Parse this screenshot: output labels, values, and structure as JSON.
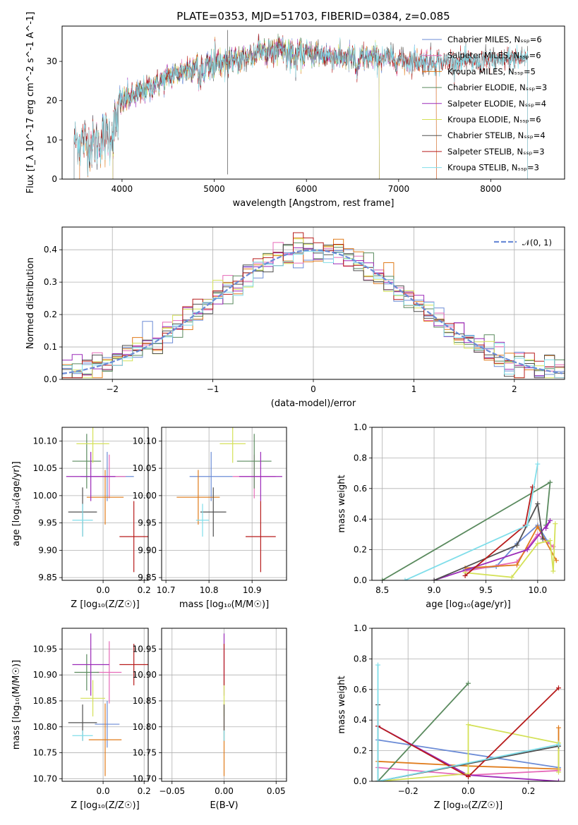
{
  "chart_data": [
    {
      "type": "line",
      "title": "PLATE=0353, MJD=51703, FIBERID=0384, z=0.085",
      "xlabel": "wavelength [Angstrom, rest frame]",
      "ylabel": "Flux [f_λ 10^-17 erg cm^-2 s^-1 A^-1]",
      "xlim": [
        3350,
        8800
      ],
      "ylim": [
        0,
        39
      ],
      "xticks": [
        "4000",
        "5000",
        "6000",
        "7000",
        "8000"
      ],
      "yticks": [
        "0",
        "10",
        "20",
        "30"
      ],
      "grid": false,
      "legend_position": "top-right",
      "series": [
        {
          "name": "Chabrier MILES, N_SSP=6",
          "color": "#6b8bd6",
          "x_range": [
            3540,
            7410
          ]
        },
        {
          "name": "Salpeter MILES, N_SSP=6",
          "color": "#e66ab8",
          "x_range": [
            3540,
            7410
          ]
        },
        {
          "name": "Kroupa MILES, N_SSP=5",
          "color": "#e07b1a",
          "x_range": [
            3540,
            7410
          ]
        },
        {
          "name": "Chabrier ELODIE, N_SSP=3",
          "color": "#5a8a5e",
          "x_range": [
            3900,
            6790
          ]
        },
        {
          "name": "Salpeter ELODIE, N_SSP=4",
          "color": "#9b2ab8",
          "x_range": [
            3900,
            6790
          ]
        },
        {
          "name": "Kroupa ELODIE, N_SSP=6",
          "color": "#d4e157",
          "x_range": [
            3900,
            6790
          ]
        },
        {
          "name": "Chabrier STELIB, N_SSP=4",
          "color": "#505050",
          "x_range": [
            3480,
            8400
          ]
        },
        {
          "name": "Salpeter STELIB, N_SSP=3",
          "color": "#b71c1c",
          "x_range": [
            3480,
            8400
          ]
        },
        {
          "name": "Kroupa STELIB, N_SSP=3",
          "color": "#80deea",
          "x_range": [
            3480,
            8400
          ]
        }
      ],
      "continuum": {
        "x": [
          3500,
          3700,
          3900,
          4000,
          4200,
          4500,
          4800,
          5200,
          5600,
          6000,
          6400,
          6800,
          7200,
          7600,
          8000,
          8400
        ],
        "y": [
          10,
          9,
          12,
          20,
          22,
          26,
          29,
          30,
          33,
          32,
          31,
          31,
          30,
          30,
          30,
          31
        ]
      }
    },
    {
      "type": "line",
      "xlabel": "(data-model)/error",
      "ylabel": "Normed distribution",
      "xlim": [
        -2.5,
        2.5
      ],
      "ylim": [
        0,
        0.47
      ],
      "xticks": [
        "−2",
        "−1",
        "0",
        "1",
        "2"
      ],
      "yticks": [
        "0.0",
        "0.1",
        "0.2",
        "0.3",
        "0.4"
      ],
      "grid": true,
      "legend_position": "top-right",
      "reference_curve": {
        "name": "𝒩(0, 1)",
        "color": "#6b8bd6",
        "style": "dashed",
        "mean": 0,
        "sigma": 1
      },
      "histogram_bin_width": 0.1
    },
    {
      "type": "scatter",
      "xlabel": "Z [log₁₀(Z/Z☉)]",
      "ylabel": "age  [log₁₀(age/yr)]",
      "xlim": [
        -0.2,
        0.22
      ],
      "ylim": [
        9.845,
        10.125
      ],
      "xticks": [
        "0.0",
        "0.2"
      ],
      "yticks": [
        "9.85",
        "9.90",
        "9.95",
        "10.00",
        "10.05",
        "10.10"
      ],
      "grid": true,
      "points": [
        {
          "color": "#6b8bd6",
          "x": 0.02,
          "y": 10.035,
          "xerr": 0.13,
          "yerr": 0.045
        },
        {
          "color": "#e66ab8",
          "x": 0.03,
          "y": 10.035,
          "xerr": 0.08,
          "yerr": 0.04
        },
        {
          "color": "#e07b1a",
          "x": 0.01,
          "y": 9.997,
          "xerr": 0.09,
          "yerr": 0.05
        },
        {
          "color": "#5a8a5e",
          "x": -0.08,
          "y": 10.063,
          "xerr": 0.07,
          "yerr": 0.05
        },
        {
          "color": "#9b2ab8",
          "x": -0.06,
          "y": 10.035,
          "xerr": 0.12,
          "yerr": 0.045
        },
        {
          "color": "#d4e157",
          "x": -0.05,
          "y": 10.095,
          "xerr": 0.08,
          "yerr": 0.035
        },
        {
          "color": "#505050",
          "x": -0.1,
          "y": 9.97,
          "xerr": 0.07,
          "yerr": 0.045
        },
        {
          "color": "#b71c1c",
          "x": 0.15,
          "y": 9.925,
          "xerr": 0.07,
          "yerr": 0.065
        },
        {
          "color": "#80deea",
          "x": -0.1,
          "y": 9.955,
          "xerr": 0.05,
          "yerr": 0.03
        }
      ]
    },
    {
      "type": "scatter",
      "xlabel": "mass [log₁₀(M/M☉)]",
      "ylabel": "",
      "xlim": [
        10.69,
        10.98
      ],
      "ylim": [
        9.845,
        10.125
      ],
      "xticks": [
        "10.7",
        "10.8",
        "10.9"
      ],
      "yticks": [
        "9.85",
        "9.90",
        "9.95",
        "10.00",
        "10.05",
        "10.10"
      ],
      "grid": true,
      "points": [
        {
          "color": "#6b8bd6",
          "x": 10.805,
          "y": 10.035,
          "xerr": 0.05,
          "yerr": 0.045
        },
        {
          "color": "#e66ab8",
          "x": 10.905,
          "y": 10.035,
          "xerr": 0.05,
          "yerr": 0.04
        },
        {
          "color": "#e07b1a",
          "x": 10.775,
          "y": 9.997,
          "xerr": 0.05,
          "yerr": 0.05
        },
        {
          "color": "#5a8a5e",
          "x": 10.905,
          "y": 10.063,
          "xerr": 0.04,
          "yerr": 0.05
        },
        {
          "color": "#9b2ab8",
          "x": 10.92,
          "y": 10.035,
          "xerr": 0.05,
          "yerr": 0.045
        },
        {
          "color": "#d4e157",
          "x": 10.855,
          "y": 10.095,
          "xerr": 0.03,
          "yerr": 0.035
        },
        {
          "color": "#505050",
          "x": 10.81,
          "y": 9.97,
          "xerr": 0.03,
          "yerr": 0.045
        },
        {
          "color": "#b71c1c",
          "x": 10.92,
          "y": 9.925,
          "xerr": 0.035,
          "yerr": 0.065
        },
        {
          "color": "#80deea",
          "x": 10.785,
          "y": 9.955,
          "xerr": 0.015,
          "yerr": 0.03
        }
      ]
    },
    {
      "type": "line",
      "xlabel": "age  [log₁₀(age/yr)]",
      "ylabel": "mass weight",
      "xlim": [
        8.4,
        10.26
      ],
      "ylim": [
        0,
        1
      ],
      "xticks": [
        "8.5",
        "9.0",
        "9.5",
        "10.0"
      ],
      "yticks": [
        "0.0",
        "0.2",
        "0.4",
        "0.6",
        "0.8",
        "1.0"
      ],
      "grid": true,
      "series": [
        {
          "color": "#6b8bd6",
          "x": [
            9.3,
            9.6,
            9.8,
            10.0,
            10.1
          ],
          "y": [
            0.07,
            0.09,
            0.24,
            0.36,
            0.25
          ]
        },
        {
          "color": "#e66ab8",
          "x": [
            9.3,
            9.8,
            10.0,
            10.15
          ],
          "y": [
            0.06,
            0.12,
            0.3,
            0.22
          ]
        },
        {
          "color": "#e07b1a",
          "x": [
            9.3,
            9.8,
            10.0,
            10.18
          ],
          "y": [
            0.08,
            0.1,
            0.35,
            0.13
          ]
        },
        {
          "color": "#5a8a5e",
          "x": [
            8.5,
            10.12,
            10.08
          ],
          "y": [
            0.0,
            0.64,
            0.36
          ]
        },
        {
          "color": "#9b2ab8",
          "x": [
            9.0,
            9.9,
            10.12,
            10.08
          ],
          "y": [
            0.0,
            0.2,
            0.39,
            0.34
          ]
        },
        {
          "color": "#d4e157",
          "x": [
            9.3,
            9.75,
            10.0,
            10.12,
            10.15,
            10.17
          ],
          "y": [
            0.05,
            0.02,
            0.24,
            0.26,
            0.06,
            0.37
          ]
        },
        {
          "color": "#505050",
          "x": [
            9.0,
            9.8,
            10.0,
            10.05
          ],
          "y": [
            0.0,
            0.23,
            0.5,
            0.27
          ]
        },
        {
          "color": "#b71c1c",
          "x": [
            9.3,
            9.88,
            9.95
          ],
          "y": [
            0.03,
            0.36,
            0.61
          ]
        },
        {
          "color": "#80deea",
          "x": [
            8.72,
            9.9,
            10.0
          ],
          "y": [
            0.0,
            0.36,
            0.76
          ]
        }
      ]
    },
    {
      "type": "scatter",
      "xlabel": "Z [log₁₀(Z/Z☉)]",
      "ylabel": "mass [log₁₀(M/M☉)]",
      "xlim": [
        -0.2,
        0.22
      ],
      "ylim": [
        10.695,
        10.99
      ],
      "xticks": [
        "0.0",
        "0.2"
      ],
      "yticks": [
        "10.70",
        "10.75",
        "10.80",
        "10.85",
        "10.90",
        "10.95"
      ],
      "grid": true,
      "points": [
        {
          "color": "#6b8bd6",
          "x": 0.02,
          "y": 10.805,
          "xerr": 0.06,
          "yerr": 0.045
        },
        {
          "color": "#e66ab8",
          "x": 0.03,
          "y": 10.905,
          "xerr": 0.06,
          "yerr": 0.06
        },
        {
          "color": "#e07b1a",
          "x": 0.01,
          "y": 10.775,
          "xerr": 0.08,
          "yerr": 0.07
        },
        {
          "color": "#5a8a5e",
          "x": -0.08,
          "y": 10.905,
          "xerr": 0.06,
          "yerr": 0.035
        },
        {
          "color": "#9b2ab8",
          "x": -0.06,
          "y": 10.92,
          "xerr": 0.09,
          "yerr": 0.06
        },
        {
          "color": "#d4e157",
          "x": -0.05,
          "y": 10.855,
          "xerr": 0.06,
          "yerr": 0.035
        },
        {
          "color": "#505050",
          "x": -0.1,
          "y": 10.808,
          "xerr": 0.07,
          "yerr": 0.035
        },
        {
          "color": "#b71c1c",
          "x": 0.15,
          "y": 10.92,
          "xerr": 0.07,
          "yerr": 0.04
        },
        {
          "color": "#80deea",
          "x": -0.1,
          "y": 10.783,
          "xerr": 0.05,
          "yerr": 0.01
        }
      ]
    },
    {
      "type": "scatter",
      "xlabel": "E(B-V)",
      "ylabel": "",
      "xlim": [
        -0.06,
        0.06
      ],
      "ylim": [
        10.695,
        10.99
      ],
      "xticks": [
        "−0.05",
        "0.00",
        "0.05"
      ],
      "yticks": [
        "10.70",
        "10.75",
        "10.80",
        "10.85",
        "10.90",
        "10.95"
      ],
      "grid": true,
      "points": [
        {
          "color": "#e07b1a",
          "x": 0,
          "y": 10.775,
          "xerr": 0,
          "yerr": 0.07
        },
        {
          "color": "#9b2ab8",
          "x": 0,
          "y": 10.92,
          "xerr": 0,
          "yerr": 0.06
        },
        {
          "color": "#d4e157",
          "x": 0,
          "y": 10.855,
          "xerr": 0,
          "yerr": 0.035
        },
        {
          "color": "#505050",
          "x": 0,
          "y": 10.808,
          "xerr": 0,
          "yerr": 0.035
        },
        {
          "color": "#b71c1c",
          "x": 0,
          "y": 10.92,
          "xerr": 0,
          "yerr": 0.04
        },
        {
          "color": "#80deea",
          "x": 0,
          "y": 10.783,
          "xerr": 0,
          "yerr": 0.01
        }
      ]
    },
    {
      "type": "line",
      "xlabel": "Z [log₁₀(Z/Z☉)]",
      "ylabel": "mass weight",
      "xlim": [
        -0.32,
        0.32
      ],
      "ylim": [
        0,
        1
      ],
      "xticks": [
        "−0.2",
        "0.0",
        "0.2"
      ],
      "yticks": [
        "0.0",
        "0.2",
        "0.4",
        "0.6",
        "0.8",
        "1.0"
      ],
      "grid": true,
      "series": [
        {
          "color": "#6b8bd6",
          "x": [
            -0.3,
            0.3,
            0.3
          ],
          "y": [
            0.27,
            0.09,
            0.23
          ]
        },
        {
          "color": "#e66ab8",
          "x": [
            -0.3,
            0.0,
            0.3
          ],
          "y": [
            0.09,
            0.04,
            0.07
          ]
        },
        {
          "color": "#e07b1a",
          "x": [
            -0.3,
            0.0,
            0.3,
            0.3
          ],
          "y": [
            0.13,
            0.1,
            0.08,
            0.35
          ]
        },
        {
          "color": "#5a8a5e",
          "x": [
            -0.3,
            0.0
          ],
          "y": [
            0.0,
            0.64
          ]
        },
        {
          "color": "#9b2ab8",
          "x": [
            -0.3,
            0.0,
            0.3
          ],
          "y": [
            0.36,
            0.04,
            0.0
          ]
        },
        {
          "color": "#d4e157",
          "x": [
            -0.3,
            0.0,
            0.0,
            0.3,
            0.3
          ],
          "y": [
            0.0,
            0.05,
            0.37,
            0.25,
            0.06
          ]
        },
        {
          "color": "#505050",
          "x": [
            -0.3,
            -0.3,
            0.3
          ],
          "y": [
            0.5,
            0.0,
            0.23
          ]
        },
        {
          "color": "#b71c1c",
          "x": [
            -0.3,
            0.0,
            0.3
          ],
          "y": [
            0.36,
            0.03,
            0.61
          ]
        },
        {
          "color": "#80deea",
          "x": [
            -0.3,
            -0.3,
            0.3
          ],
          "y": [
            0.76,
            0.0,
            0.24
          ]
        }
      ]
    }
  ]
}
